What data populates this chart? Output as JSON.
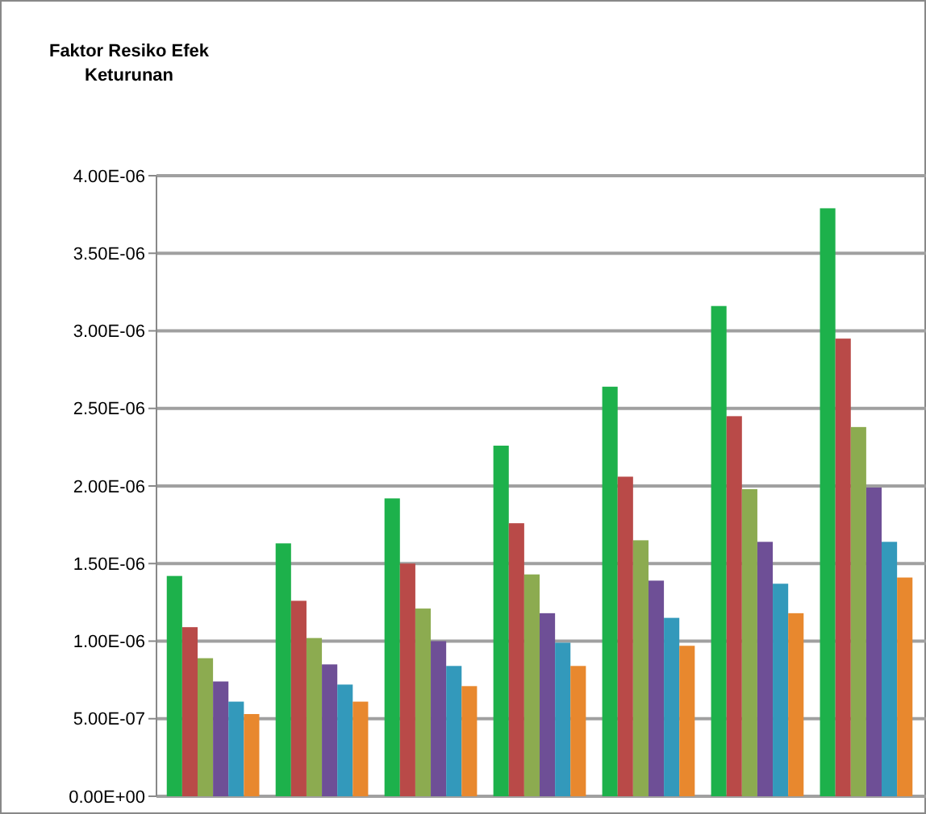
{
  "chart_data": {
    "type": "bar",
    "title": "Faktor Resiko Efek Keturunan",
    "categories": [
      null,
      null,
      null,
      null,
      null,
      null,
      null
    ],
    "series": [
      {
        "color": "#1db14b",
        "values": [
          1.42e-06,
          1.63e-06,
          1.92e-06,
          2.26e-06,
          2.64e-06,
          3.16e-06,
          3.79e-06
        ]
      },
      {
        "color": "#b94a48",
        "values": [
          1.09e-06,
          1.26e-06,
          1.5e-06,
          1.76e-06,
          2.06e-06,
          2.45e-06,
          2.95e-06
        ]
      },
      {
        "color": "#8cab50",
        "values": [
          8.9e-07,
          1.02e-06,
          1.21e-06,
          1.43e-06,
          1.65e-06,
          1.98e-06,
          2.38e-06
        ]
      },
      {
        "color": "#6e4f96",
        "values": [
          7.4e-07,
          8.5e-07,
          1e-06,
          1.18e-06,
          1.39e-06,
          1.64e-06,
          1.99e-06
        ]
      },
      {
        "color": "#3399bb",
        "values": [
          6.1e-07,
          7.2e-07,
          8.4e-07,
          9.9e-07,
          1.15e-06,
          1.37e-06,
          1.64e-06
        ]
      },
      {
        "color": "#e8882e",
        "values": [
          5.3e-07,
          6.1e-07,
          7.1e-07,
          8.4e-07,
          9.7e-07,
          1.18e-06,
          1.41e-06
        ]
      }
    ],
    "ylim": [
      0,
      4e-06
    ],
    "yticks": [
      {
        "value": 0,
        "label": "0.00E+00"
      },
      {
        "value": 5e-07,
        "label": "5.00E-07"
      },
      {
        "value": 1e-06,
        "label": "1.00E-06"
      },
      {
        "value": 1.5e-06,
        "label": "1.50E-06"
      },
      {
        "value": 2e-06,
        "label": "2.00E-06"
      },
      {
        "value": 2.5e-06,
        "label": "2.50E-06"
      },
      {
        "value": 3e-06,
        "label": "3.00E-06"
      },
      {
        "value": 3.5e-06,
        "label": "3.50E-06"
      },
      {
        "value": 4e-06,
        "label": "4.00E-06"
      }
    ],
    "grid": "y"
  }
}
